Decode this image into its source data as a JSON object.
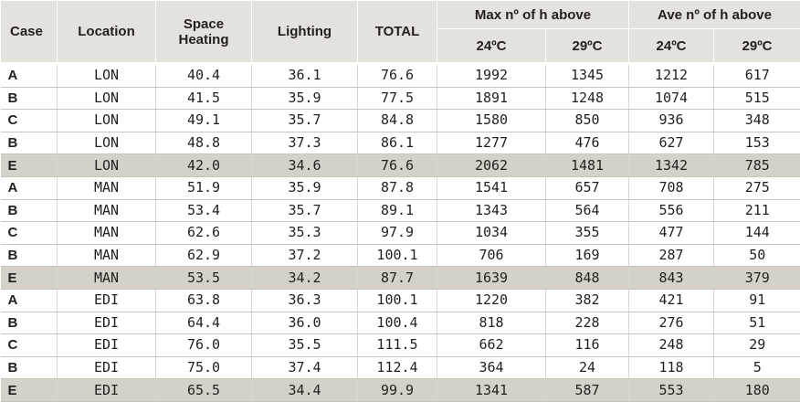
{
  "headers": {
    "case": "Case",
    "location": "Location",
    "space_heating": "Space Heating",
    "lighting": "Lighting",
    "total": "TOTAL",
    "max_group": "Max nº of h above",
    "ave_group": "Ave nº of h above",
    "t24": "24ºC",
    "t29": "29ºC"
  },
  "highlight_color": "#d5d1c9",
  "header_color": "#e4e2dd",
  "rows": [
    {
      "case": "A",
      "location": "LON",
      "heating": "40.4",
      "lighting": "36.1",
      "total": "76.6",
      "max24": "1992",
      "max29": "1345",
      "ave24": "1212",
      "ave29": "617",
      "highlight": false
    },
    {
      "case": "B",
      "location": "LON",
      "heating": "41.5",
      "lighting": "35.9",
      "total": "77.5",
      "max24": "1891",
      "max29": "1248",
      "ave24": "1074",
      "ave29": "515",
      "highlight": false
    },
    {
      "case": "C",
      "location": "LON",
      "heating": "49.1",
      "lighting": "35.7",
      "total": "84.8",
      "max24": "1580",
      "max29": "850",
      "ave24": "936",
      "ave29": "348",
      "highlight": false
    },
    {
      "case": "B",
      "location": "LON",
      "heating": "48.8",
      "lighting": "37.3",
      "total": "86.1",
      "max24": "1277",
      "max29": "476",
      "ave24": "627",
      "ave29": "153",
      "highlight": false
    },
    {
      "case": "E",
      "location": "LON",
      "heating": "42.0",
      "lighting": "34.6",
      "total": "76.6",
      "max24": "2062",
      "max29": "1481",
      "ave24": "1342",
      "ave29": "785",
      "highlight": true
    },
    {
      "case": "A",
      "location": "MAN",
      "heating": "51.9",
      "lighting": "35.9",
      "total": "87.8",
      "max24": "1541",
      "max29": "657",
      "ave24": "708",
      "ave29": "275",
      "highlight": false
    },
    {
      "case": "B",
      "location": "MAN",
      "heating": "53.4",
      "lighting": "35.7",
      "total": "89.1",
      "max24": "1343",
      "max29": "564",
      "ave24": "556",
      "ave29": "211",
      "highlight": false
    },
    {
      "case": "C",
      "location": "MAN",
      "heating": "62.6",
      "lighting": "35.3",
      "total": "97.9",
      "max24": "1034",
      "max29": "355",
      "ave24": "477",
      "ave29": "144",
      "highlight": false
    },
    {
      "case": "B",
      "location": "MAN",
      "heating": "62.9",
      "lighting": "37.2",
      "total": "100.1",
      "max24": "706",
      "max29": "169",
      "ave24": "287",
      "ave29": "50",
      "highlight": false
    },
    {
      "case": "E",
      "location": "MAN",
      "heating": "53.5",
      "lighting": "34.2",
      "total": "87.7",
      "max24": "1639",
      "max29": "848",
      "ave24": "843",
      "ave29": "379",
      "highlight": true
    },
    {
      "case": "A",
      "location": "EDI",
      "heating": "63.8",
      "lighting": "36.3",
      "total": "100.1",
      "max24": "1220",
      "max29": "382",
      "ave24": "421",
      "ave29": "91",
      "highlight": false
    },
    {
      "case": "B",
      "location": "EDI",
      "heating": "64.4",
      "lighting": "36.0",
      "total": "100.4",
      "max24": "818",
      "max29": "228",
      "ave24": "276",
      "ave29": "51",
      "highlight": false
    },
    {
      "case": "C",
      "location": "EDI",
      "heating": "76.0",
      "lighting": "35.5",
      "total": "111.5",
      "max24": "662",
      "max29": "116",
      "ave24": "248",
      "ave29": "29",
      "highlight": false
    },
    {
      "case": "B",
      "location": "EDI",
      "heating": "75.0",
      "lighting": "37.4",
      "total": "112.4",
      "max24": "364",
      "max29": "24",
      "ave24": "118",
      "ave29": "5",
      "highlight": false
    },
    {
      "case": "E",
      "location": "EDI",
      "heating": "65.5",
      "lighting": "34.4",
      "total": "99.9",
      "max24": "1341",
      "max29": "587",
      "ave24": "553",
      "ave29": "180",
      "highlight": true
    }
  ]
}
